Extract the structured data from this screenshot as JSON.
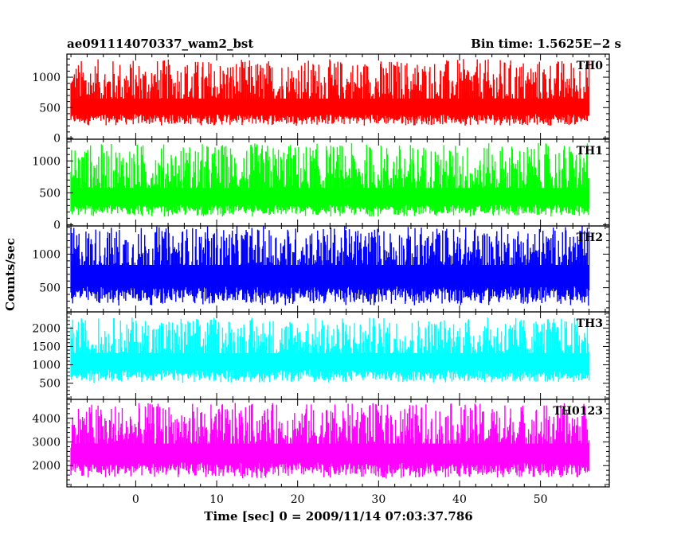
{
  "header": {
    "title": "ae091114070337_wam2_bst",
    "bin_time": "Bin time: 1.5625E−2 s"
  },
  "chart_data": {
    "type": "line",
    "title": "ae091114070337_wam2_bst",
    "xlabel": "Time [sec] 0 = 2009/11/14 07:03:37.786",
    "ylabel": "Counts/sec",
    "xlim": [
      -8.5,
      58.5
    ],
    "x_ticks": [
      0,
      10,
      20,
      30,
      40,
      50
    ],
    "x_range_data": [
      -8,
      56
    ],
    "grid": false,
    "panels": [
      {
        "name": "TH0",
        "color": "#ff0000",
        "ylim": [
          -20,
          1380
        ],
        "y_ticks": [
          0,
          500,
          1000
        ],
        "series": {
          "base": 200,
          "median": 560,
          "peak": 1300
        }
      },
      {
        "name": "TH1",
        "color": "#00ff00",
        "ylim": [
          -20,
          1340
        ],
        "y_ticks": [
          0,
          500,
          1000
        ],
        "series": {
          "base": 120,
          "median": 480,
          "peak": 1280
        }
      },
      {
        "name": "TH2",
        "color": "#0000ff",
        "ylim": [
          140,
          1420
        ],
        "y_ticks": [
          500,
          1000
        ],
        "series": {
          "base": 230,
          "median": 760,
          "peak": 1420
        }
      },
      {
        "name": "TH3",
        "color": "#00ffff",
        "ylim": [
          60,
          2440
        ],
        "y_ticks": [
          500,
          1000,
          1500,
          2000
        ],
        "series": {
          "base": 500,
          "median": 1180,
          "peak": 2300
        }
      },
      {
        "name": "TH0123",
        "color": "#ff00ff",
        "ylim": [
          1100,
          4800
        ],
        "y_ticks": [
          2000,
          3000,
          4000
        ],
        "series": {
          "base": 1450,
          "median": 2700,
          "peak": 4650
        }
      }
    ]
  }
}
